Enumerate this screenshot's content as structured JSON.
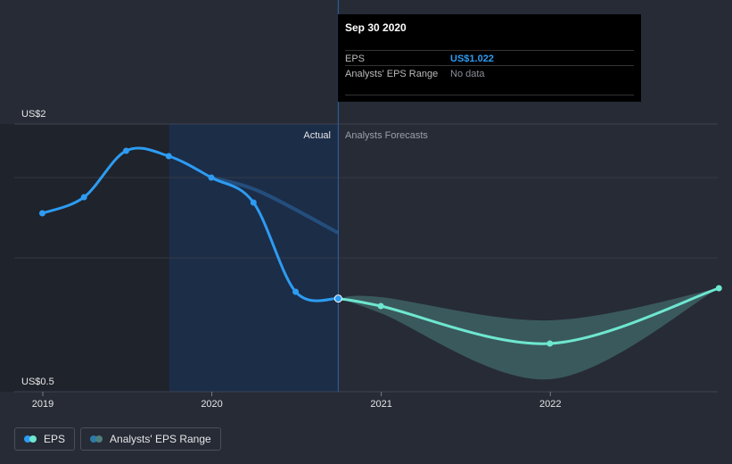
{
  "chart_data": {
    "type": "line",
    "y_axis_labels": {
      "top": "US$2",
      "bottom": "US$0.5"
    },
    "ylim": [
      0.5,
      2
    ],
    "x_ticks": [
      "2019",
      "2020",
      "2021",
      "2022"
    ],
    "section_labels": {
      "actual": "Actual",
      "forecast": "Analysts Forecasts"
    },
    "series": [
      {
        "name": "EPS",
        "type": "actual",
        "color": "#2d9cf2",
        "points": [
          {
            "x": "2018-12-31",
            "y": 1.5
          },
          {
            "x": "2019-03-31",
            "y": 1.59
          },
          {
            "x": "2019-06-30",
            "y": 1.85
          },
          {
            "x": "2019-09-30",
            "y": 1.82
          },
          {
            "x": "2019-12-31",
            "y": 1.7
          },
          {
            "x": "2020-03-31",
            "y": 1.56
          },
          {
            "x": "2020-06-30",
            "y": 1.06
          },
          {
            "x": "2020-09-30",
            "y": 1.022
          }
        ]
      },
      {
        "name": "EPS forecast",
        "type": "forecast",
        "color": "#6ee7d0",
        "points": [
          {
            "x": "2020-09-30",
            "y": 1.022
          },
          {
            "x": "2020-12-31",
            "y": 0.98
          },
          {
            "x": "2021-12-31",
            "y": 0.77
          },
          {
            "x": "2022-12-31",
            "y": 1.08
          }
        ]
      },
      {
        "name": "Analysts' EPS Range",
        "type": "range",
        "color": "#4b7f7e",
        "points": [
          {
            "x": "2020-09-30",
            "low": 1.022,
            "high": 1.022
          },
          {
            "x": "2020-12-31",
            "low": 0.94,
            "high": 1.03
          },
          {
            "x": "2021-12-31",
            "low": 0.57,
            "high": 0.9
          },
          {
            "x": "2022-12-31",
            "low": 1.08,
            "high": 1.08
          }
        ]
      }
    ],
    "tooltip": {
      "date": "Sep 30 2020",
      "eps_label": "EPS",
      "eps_value": "US$1.022",
      "range_label": "Analysts' EPS Range",
      "range_value": "No data"
    },
    "legend": [
      {
        "label": "EPS",
        "color": "#2d9cf2"
      },
      {
        "label": "Analysts' EPS Range",
        "color": "#4b7f7e"
      }
    ]
  }
}
